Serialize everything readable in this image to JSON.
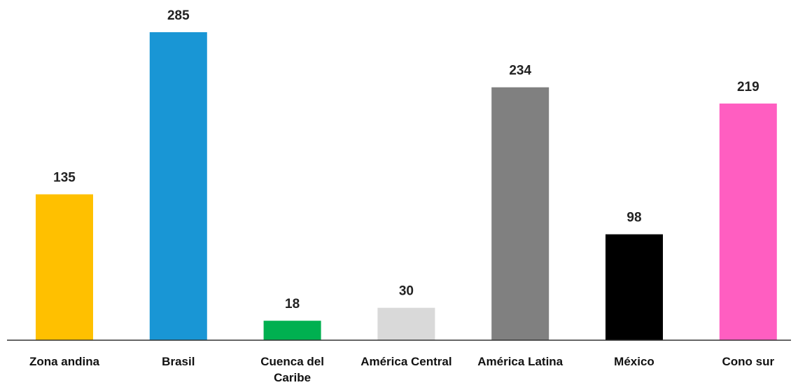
{
  "chart_data": {
    "type": "bar",
    "categories": [
      "Zona andina",
      "Brasil",
      "Cuenca del Caribe",
      "América Central",
      "América Latina",
      "México",
      "Cono sur"
    ],
    "category_lines": [
      [
        "Zona andina"
      ],
      [
        "Brasil"
      ],
      [
        "Cuenca del",
        "Caribe"
      ],
      [
        "América Central"
      ],
      [
        "América Latina"
      ],
      [
        "México"
      ],
      [
        "Cono sur"
      ]
    ],
    "values": [
      135,
      285,
      18,
      30,
      234,
      98,
      219
    ],
    "colors": [
      "#FFC000",
      "#1996D5",
      "#00B050",
      "#D9D9D9",
      "#808080",
      "#000000",
      "#FF5EC1"
    ],
    "title": "",
    "xlabel": "",
    "ylabel": "",
    "ylim": [
      0,
      285
    ],
    "grid": false,
    "legend": "none",
    "data_labels": true
  }
}
